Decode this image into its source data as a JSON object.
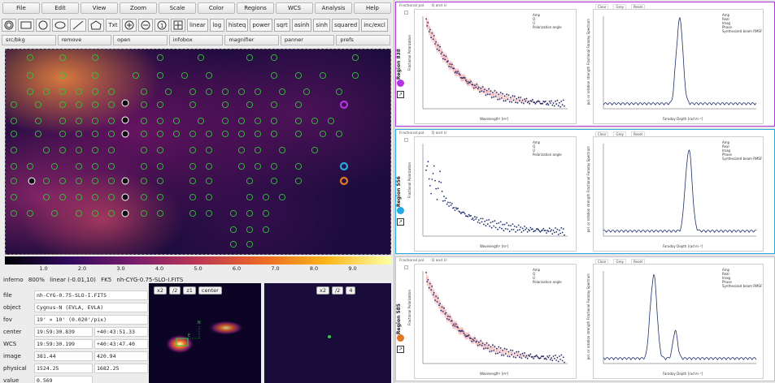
{
  "menubar": [
    "File",
    "Edit",
    "View",
    "Zoom",
    "Scale",
    "Color",
    "Regions",
    "WCS",
    "Analysis",
    "Help"
  ],
  "shapes": [
    {
      "icon": "circle-annulus-icon",
      "label": ""
    },
    {
      "icon": "box-icon",
      "label": ""
    },
    {
      "icon": "circle-icon",
      "label": ""
    },
    {
      "icon": "ellipse-icon",
      "label": ""
    },
    {
      "icon": "line-icon",
      "label": ""
    },
    {
      "icon": "polygon-icon",
      "label": ""
    },
    {
      "icon": "text-icon",
      "label": "Txt"
    },
    {
      "icon": "zoom-in-icon",
      "label": ""
    },
    {
      "icon": "zoom-out-icon",
      "label": ""
    },
    {
      "icon": "zoom-fit-icon",
      "label": ""
    },
    {
      "icon": "crosshair-icon",
      "label": ""
    }
  ],
  "scales": [
    "linear",
    "log",
    "histeq",
    "power",
    "sqrt",
    "asinh",
    "sinh",
    "squared",
    "inc/excl"
  ],
  "commands": [
    "src/bkg",
    "remove",
    "open",
    "infobox",
    "magnifier",
    "panner",
    "prefs"
  ],
  "colorbar": {
    "ticks": [
      "1.0",
      "2.0",
      "3.0",
      "4.0",
      "5.0",
      "6.0",
      "7.0",
      "8.0",
      "9.0"
    ]
  },
  "infoline": {
    "colormap": "inferno",
    "zoom": "800%",
    "scale": "linear (-0.01,10)",
    "system": "FK5",
    "filename": "nh-CYG-0.75-SLO-I.FITS"
  },
  "info": {
    "file": {
      "label": "file",
      "value": "nh-CYG-0.75-SLO-I.FITS"
    },
    "object": {
      "label": "object",
      "value": "Cygnus-N  (EVLA, EVLA)"
    },
    "fov": {
      "label": "fov",
      "value": "19' × 10'  (0.020'/pix)"
    },
    "center": {
      "label": "center",
      "ra": "19:59:30.839",
      "dec": "+40:43:51.33"
    },
    "wcs": {
      "label": "WCS",
      "ra": "19:59:30.199",
      "dec": "+40:43:47.40"
    },
    "image": {
      "label": "image",
      "x": "381.44",
      "y": "420.94"
    },
    "physical": {
      "label": "physical",
      "x": "1524.25",
      "y": "1682.25"
    },
    "value": {
      "label": "value",
      "value": "0.569"
    }
  },
  "panner": {
    "buttons": [
      "x2",
      "/2",
      "z1",
      "center"
    ],
    "compass_n": "N",
    "compass_e": "E"
  },
  "magnifier": {
    "buttons": [
      "x2",
      "/2",
      "4"
    ]
  },
  "regions": [
    {
      "id": "R1",
      "name": "Region  838",
      "color": "#b434e0"
    },
    {
      "id": "R2",
      "name": "Region  556",
      "color": "#26a9e0"
    },
    {
      "id": "R3",
      "name": "Region  585",
      "color": "#e07826"
    }
  ],
  "plot_tabs": {
    "left": [
      "Fractional pol.",
      "Q and U"
    ],
    "right": [
      "Clear",
      "Grey",
      "Reset"
    ]
  },
  "legend_left": [
    "Amp",
    "Q",
    "U",
    "Polarization angle"
  ],
  "legend_right": [
    "Amp",
    "Real",
    "Imag",
    "Phase",
    "Synthesized beam RMSF"
  ],
  "axes": {
    "left_x": "Wavelength² [m²]",
    "left_y": "Fractional Polarization",
    "right_x": "Faraday Depth [rad m⁻²]",
    "right_y": "pol. or rotation strength Fractional Faraday Spectrum"
  },
  "colors": {
    "accent": "#1f2f6e",
    "err": "#f2a8a8",
    "ds9bg": "#ececec"
  }
}
